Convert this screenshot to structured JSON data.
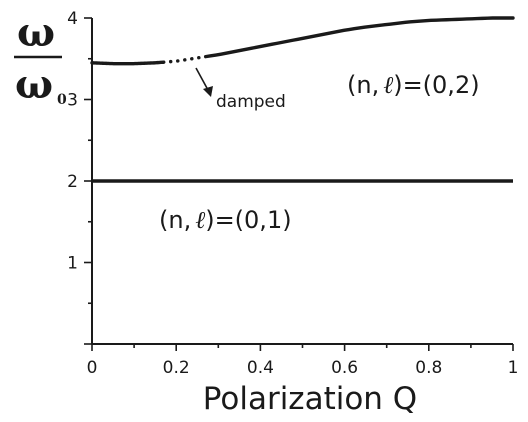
{
  "chart_data": {
    "type": "line",
    "title": "",
    "xlabel": "Polarization Q",
    "ylabel": {
      "numerator": "ω",
      "denominator": "ω",
      "subscript": "0"
    },
    "xlim": [
      0,
      1
    ],
    "ylim": [
      0,
      4
    ],
    "x_ticks": [
      "0",
      "0.2",
      "0.4",
      "0.6",
      "0.8",
      "1"
    ],
    "y_ticks": [
      "1",
      "2",
      "3",
      "4"
    ],
    "grid": false,
    "series": [
      {
        "label": {
          "prefix": "(n,",
          "ell": "ℓ",
          "suffix": ")=(0,2)"
        },
        "x": [
          0,
          0.05,
          0.1,
          0.15,
          0.2,
          0.25,
          0.3,
          0.35,
          0.4,
          0.45,
          0.5,
          0.55,
          0.6,
          0.65,
          0.7,
          0.75,
          0.8,
          0.85,
          0.9,
          0.95,
          1.0
        ],
        "y": [
          3.45,
          3.44,
          3.44,
          3.45,
          3.47,
          3.51,
          3.55,
          3.6,
          3.65,
          3.7,
          3.75,
          3.8,
          3.85,
          3.89,
          3.92,
          3.95,
          3.97,
          3.98,
          3.99,
          4.0,
          4.0
        ],
        "damped_range": [
          0.17,
          0.27
        ]
      },
      {
        "label": {
          "prefix": "(n,",
          "ell": "ℓ",
          "suffix": ")=(0,1)"
        },
        "x": [
          0,
          1
        ],
        "y": [
          2,
          2
        ]
      }
    ],
    "annotations": [
      {
        "text": "damped"
      }
    ]
  }
}
